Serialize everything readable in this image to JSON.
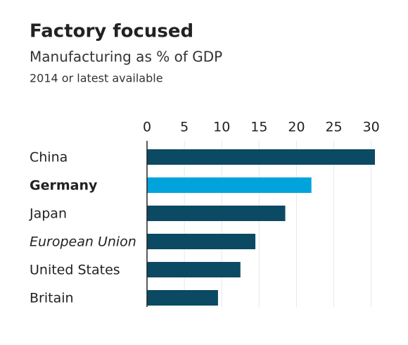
{
  "chart_data": {
    "type": "bar",
    "orientation": "horizontal",
    "title": "Factory focused",
    "subtitle": "Manufacturing as % of GDP",
    "note": "2014 or latest available",
    "categories": [
      "China",
      "Germany",
      "Japan",
      "European Union",
      "United States",
      "Britain"
    ],
    "values": [
      30.5,
      22,
      18.5,
      14.5,
      12.5,
      9.5
    ],
    "colors": [
      "#0b4a62",
      "#00a3dc",
      "#0b4a62",
      "#0b4a62",
      "#0b4a62",
      "#0b4a62"
    ],
    "xlim": [
      0,
      30.5
    ],
    "xticks": [
      0,
      5,
      10,
      15,
      20,
      25,
      30
    ],
    "grid": true
  }
}
